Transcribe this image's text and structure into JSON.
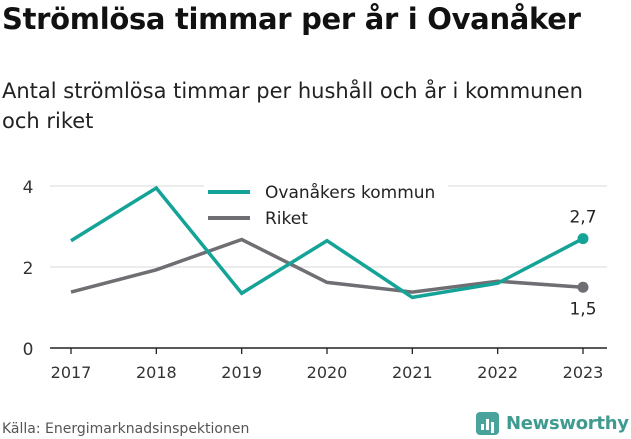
{
  "page": {
    "title": "Strömlösa timmar per år i Ovanåker",
    "subtitle": "Antal strömlösa timmar per hushåll och år i kommunen och riket",
    "source": "Källa: Energimarknadsinspektionen",
    "brand": "Newsworthy",
    "brand_icon": "bar-chart-icon"
  },
  "chart_data": {
    "type": "line",
    "title": "",
    "xlabel": "",
    "ylabel": "",
    "categories": [
      "2017",
      "2018",
      "2019",
      "2020",
      "2021",
      "2022",
      "2023"
    ],
    "ylim": [
      0,
      4
    ],
    "yticks": [
      "0",
      "2",
      "4"
    ],
    "grid": true,
    "legend": "top",
    "series": [
      {
        "name": "Ovanåkers kommun",
        "color": "#14a396",
        "values": [
          2.65,
          3.95,
          1.35,
          2.65,
          1.25,
          1.6,
          2.7
        ],
        "end_label": "2,7"
      },
      {
        "name": "Riket",
        "color": "#6e6e73",
        "values": [
          1.38,
          1.93,
          2.68,
          1.62,
          1.38,
          1.65,
          1.5
        ],
        "end_label": "1,5"
      }
    ]
  }
}
